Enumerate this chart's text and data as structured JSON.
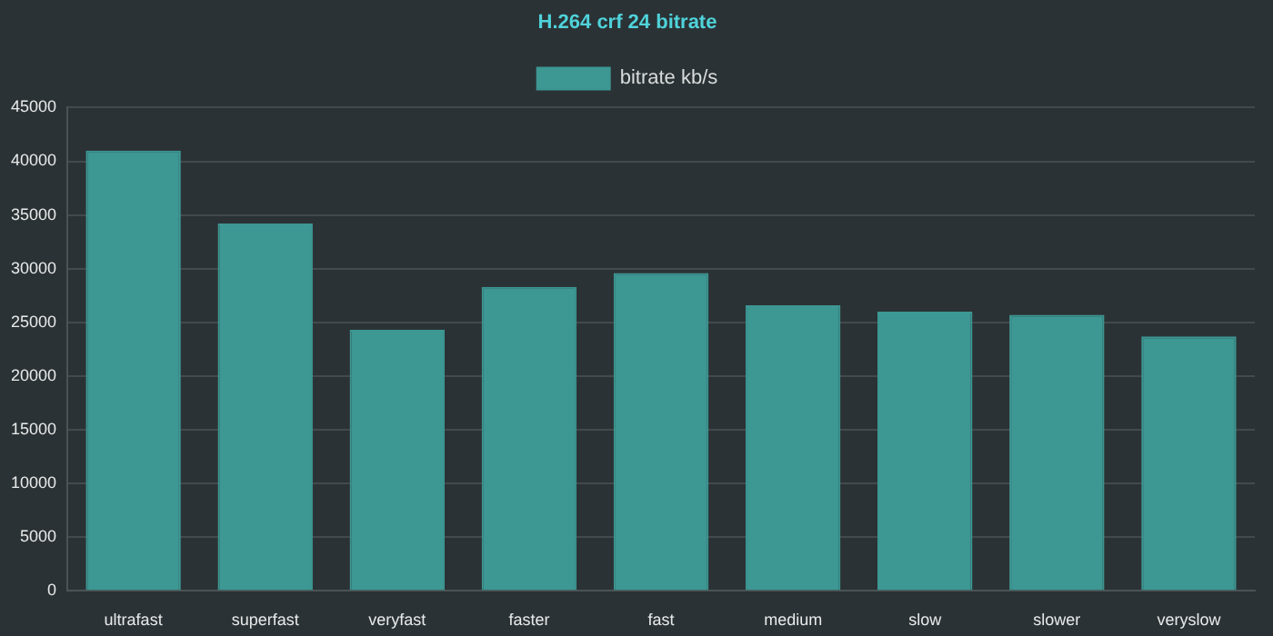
{
  "chart_data": {
    "type": "bar",
    "title": "H.264 crf 24 bitrate",
    "categories": [
      "ultrafast",
      "superfast",
      "veryfast",
      "faster",
      "fast",
      "medium",
      "slow",
      "slower",
      "veryslow"
    ],
    "series": [
      {
        "name": "bitrate kb/s",
        "color": "#3d9793",
        "values": [
          41000,
          34200,
          24300,
          28300,
          29600,
          26600,
          26000,
          25700,
          23700
        ]
      }
    ],
    "ylim": [
      0,
      45000
    ],
    "yticks": [
      0,
      5000,
      10000,
      15000,
      20000,
      25000,
      30000,
      35000,
      40000,
      45000
    ],
    "grid": "y",
    "legend": "top"
  }
}
